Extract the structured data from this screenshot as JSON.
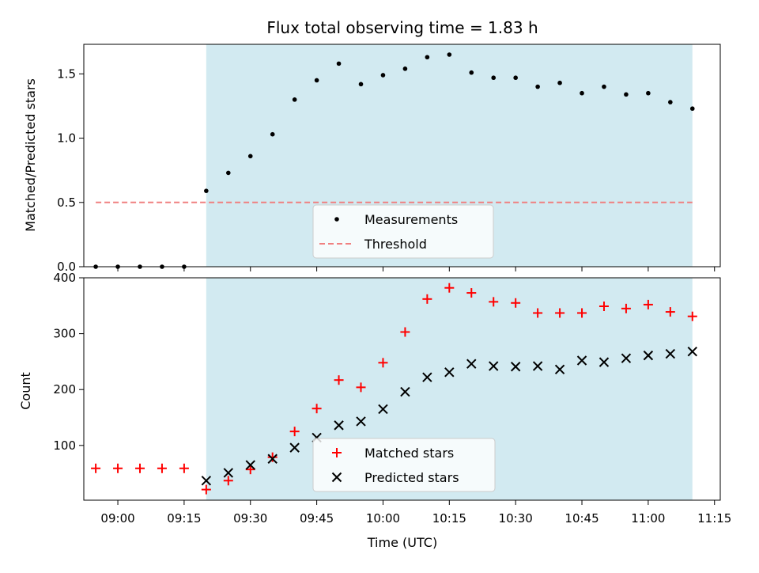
{
  "chart_data": {
    "title": "Flux total observing time = 1.83 h",
    "xlabel": "Time (UTC)",
    "x_tick_labels": [
      "09:00",
      "09:15",
      "09:30",
      "09:45",
      "10:00",
      "10:15",
      "10:30",
      "10:45",
      "11:00",
      "11:15"
    ],
    "x_ticks_min": [
      540,
      555,
      570,
      585,
      600,
      615,
      630,
      645,
      660,
      675
    ],
    "xlim_min": [
      532.3,
      676.3
    ],
    "shaded_span_min": [
      560,
      670
    ],
    "shade_color": "#add8e6",
    "times": [
      "08:55",
      "09:00",
      "09:05",
      "09:10",
      "09:15",
      "09:20",
      "09:25",
      "09:30",
      "09:35",
      "09:40",
      "09:45",
      "09:50",
      "09:55",
      "10:00",
      "10:05",
      "10:10",
      "10:15",
      "10:20",
      "10:25",
      "10:30",
      "10:35",
      "10:40",
      "10:45",
      "10:50",
      "10:55",
      "11:00",
      "11:05",
      "11:10"
    ],
    "times_min": [
      535,
      540,
      545,
      550,
      555,
      560,
      565,
      570,
      575,
      580,
      585,
      590,
      595,
      600,
      605,
      610,
      615,
      620,
      625,
      630,
      635,
      640,
      645,
      650,
      655,
      660,
      665,
      670
    ],
    "charts": [
      {
        "type": "scatter",
        "ylabel": "Matched/Predicted stars",
        "ylim": [
          0,
          1.73
        ],
        "y_ticks": [
          0.0,
          0.5,
          1.0,
          1.5
        ],
        "y_tick_labels": [
          "0.0",
          "0.5",
          "1.0",
          "1.5"
        ],
        "legend_position": "bottom-center",
        "series": [
          {
            "name": "Measurements",
            "marker": "dot",
            "color": "#000000",
            "values": [
              0,
              0,
              0,
              0,
              0,
              0.59,
              0.73,
              0.86,
              1.03,
              1.3,
              1.45,
              1.58,
              1.42,
              1.49,
              1.54,
              1.63,
              1.65,
              1.51,
              1.47,
              1.47,
              1.4,
              1.43,
              1.35,
              1.4,
              1.34,
              1.35,
              1.28,
              1.23
            ]
          },
          {
            "name": "Threshold",
            "marker": "dashed-line",
            "color": "#f08080",
            "x_min": [
              535,
              670
            ],
            "values": [
              0.5,
              0.5
            ]
          }
        ]
      },
      {
        "type": "scatter",
        "ylabel": "Count",
        "ylim": [
          2,
          400
        ],
        "y_ticks": [
          100,
          200,
          300,
          400
        ],
        "y_tick_labels": [
          "100",
          "200",
          "300",
          "400"
        ],
        "legend_position": "bottom-center",
        "series": [
          {
            "name": "Matched stars",
            "marker": "plus",
            "color": "#ff0000",
            "values": [
              59,
              59,
              59,
              59,
              59,
              21,
              37,
              57,
              79,
              125,
              166,
              217,
              204,
              248,
              303,
              362,
              382,
              373,
              357,
              355,
              337,
              337,
              337,
              349,
              345,
              352,
              339,
              331
            ]
          },
          {
            "name": "Predicted stars",
            "marker": "x",
            "color": "#000000",
            "values": [
              null,
              null,
              null,
              null,
              null,
              37,
              51,
              65,
              76,
              96,
              114,
              136,
              143,
              165,
              196,
              222,
              231,
              246,
              242,
              241,
              242,
              236,
              252,
              249,
              256,
              261,
              264,
              268
            ]
          }
        ]
      }
    ]
  }
}
